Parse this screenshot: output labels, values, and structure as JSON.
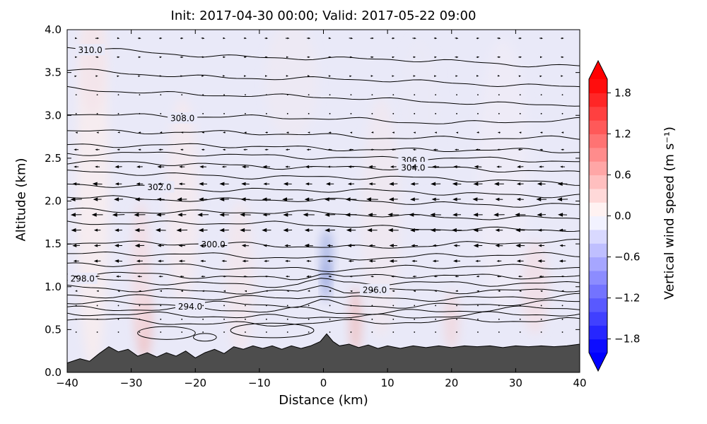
{
  "chart_data": {
    "type": "heatmap",
    "title": "Init: 2017-04-30 00:00; Valid: 2017-05-22 09:00",
    "xlabel": "Distance (km)",
    "ylabel": "Altitude (km)",
    "xlim": [
      -40,
      40
    ],
    "ylim": [
      0,
      4
    ],
    "xticks": {
      "values": [
        -40,
        -30,
        -20,
        -10,
        0,
        10,
        20,
        30,
        40
      ],
      "labels": [
        "−40",
        "−30",
        "−20",
        "−10",
        "0",
        "10",
        "20",
        "30",
        "40"
      ]
    },
    "yticks": {
      "values": [
        0,
        0.5,
        1,
        1.5,
        2,
        2.5,
        3,
        3.5,
        4
      ],
      "labels": [
        "0.0",
        "0.5",
        "1.0",
        "1.5",
        "2.0",
        "2.5",
        "3.0",
        "3.5",
        "4.0"
      ]
    },
    "colorbar": {
      "label": "Vertical wind speed (m s⁻¹)",
      "vmin": -2.0,
      "vmax": 2.0,
      "step": 0.2,
      "cmap": "bwr",
      "extend": "both",
      "ticks": {
        "values": [
          1.8,
          1.2,
          0.6,
          0.0,
          -0.6,
          -1.2,
          -1.8
        ],
        "labels": [
          "1.8",
          "1.2",
          "0.6",
          "0.0",
          "−0.6",
          "−1.2",
          "−1.8"
        ]
      }
    },
    "contour_color": "#000000",
    "terrain_color": "#4d4d4d",
    "shading": {
      "base": "#e9e9f8",
      "patches": [
        {
          "cx": -36,
          "cy": 2.2,
          "rx": 2.5,
          "ry": 2.2,
          "color": "#f7ecef",
          "op": 0.95
        },
        {
          "cx": -36,
          "cy": 3.6,
          "rx": 2.0,
          "ry": 0.6,
          "color": "#f3e4ea",
          "op": 0.8
        },
        {
          "cx": -28,
          "cy": 0.55,
          "rx": 1.2,
          "ry": 0.4,
          "color": "#efc4c6",
          "op": 0.9
        },
        {
          "cx": -28.5,
          "cy": 1.2,
          "rx": 1.5,
          "ry": 0.8,
          "color": "#f4dce2",
          "op": 0.8
        },
        {
          "cx": -22,
          "cy": 2.0,
          "rx": 2.5,
          "ry": 1.2,
          "color": "#f6eaee",
          "op": 0.8
        },
        {
          "cx": -13,
          "cy": 1.1,
          "rx": 2.2,
          "ry": 0.9,
          "color": "#f5e6ea",
          "op": 0.7
        },
        {
          "cx": 0.5,
          "cy": 1.35,
          "rx": 0.9,
          "ry": 0.33,
          "color": "#aab6e6",
          "op": 0.95
        },
        {
          "cx": 0.4,
          "cy": 1.05,
          "rx": 0.55,
          "ry": 0.22,
          "color": "#93a1dd",
          "op": 0.95
        },
        {
          "cx": 5,
          "cy": 0.6,
          "rx": 0.9,
          "ry": 0.4,
          "color": "#eebfc1",
          "op": 0.85
        },
        {
          "cx": 9,
          "cy": 1.8,
          "rx": 3.0,
          "ry": 1.4,
          "color": "#f4e8ed",
          "op": 0.6
        },
        {
          "cx": 20,
          "cy": 0.6,
          "rx": 1.2,
          "ry": 0.35,
          "color": "#f2d4d8",
          "op": 0.7
        },
        {
          "cx": 33,
          "cy": 1.0,
          "rx": 2.2,
          "ry": 0.55,
          "color": "#f3dde2",
          "op": 0.7
        },
        {
          "cx": 28,
          "cy": 2.3,
          "rx": 4.0,
          "ry": 1.6,
          "color": "#f1ecf6",
          "op": 0.6
        },
        {
          "cx": -5,
          "cy": 3.4,
          "rx": 4.0,
          "ry": 0.7,
          "color": "#f2e9f0",
          "op": 0.5
        },
        {
          "cx": 15,
          "cy": 3.1,
          "rx": 3.0,
          "ry": 0.8,
          "color": "#ece9f6",
          "op": 0.5
        }
      ]
    },
    "contours": [
      {
        "pts": [
          [
            -40,
            3.79
          ],
          [
            -30,
            3.74
          ],
          [
            -18,
            3.7
          ],
          [
            -6,
            3.68
          ],
          [
            6,
            3.65
          ],
          [
            18,
            3.63
          ],
          [
            30,
            3.6
          ],
          [
            40,
            3.58
          ]
        ],
        "wig": 0.016,
        "label": {
          "text": "310.0",
          "x": -36
        }
      },
      {
        "pts": [
          [
            -40,
            3.52
          ],
          [
            -20,
            3.46
          ],
          [
            0,
            3.42
          ],
          [
            20,
            3.38
          ],
          [
            40,
            3.34
          ]
        ],
        "wig": 0.016
      },
      {
        "pts": [
          [
            -40,
            3.31
          ],
          [
            -15,
            3.24
          ],
          [
            10,
            3.18
          ],
          [
            40,
            3.12
          ]
        ],
        "wig": 0.016
      },
      {
        "pts": [
          [
            -40,
            3.03
          ],
          [
            -25,
            3.0
          ],
          [
            -10,
            2.97
          ],
          [
            5,
            2.95
          ],
          [
            20,
            2.92
          ],
          [
            40,
            2.94
          ]
        ],
        "wig": 0.017,
        "label": {
          "text": "308.0",
          "x": -22
        }
      },
      {
        "pts": [
          [
            -40,
            2.83
          ],
          [
            -15,
            2.79
          ],
          [
            10,
            2.75
          ],
          [
            40,
            2.72
          ]
        ],
        "wig": 0.017
      },
      {
        "pts": [
          [
            -40,
            2.66
          ],
          [
            0,
            2.62
          ],
          [
            40,
            2.57
          ]
        ],
        "wig": 0.017
      },
      {
        "pts": [
          [
            -40,
            2.56
          ],
          [
            0,
            2.52
          ],
          [
            40,
            2.46
          ]
        ],
        "wig": 0.017,
        "label": {
          "text": "306.0",
          "x": 14
        }
      },
      {
        "pts": [
          [
            -40,
            2.45
          ],
          [
            0,
            2.4
          ],
          [
            40,
            2.34
          ]
        ],
        "wig": 0.018,
        "label": {
          "text": "304.0",
          "x": 14
        }
      },
      {
        "pts": [
          [
            -40,
            2.33
          ],
          [
            0,
            2.28
          ],
          [
            40,
            2.22
          ]
        ],
        "wig": 0.018
      },
      {
        "pts": [
          [
            -40,
            2.19
          ],
          [
            -27,
            2.16
          ],
          [
            0,
            2.12
          ],
          [
            20,
            2.09
          ],
          [
            40,
            2.07
          ]
        ],
        "wig": 0.018,
        "label": {
          "text": "302.0",
          "x": -26
        }
      },
      {
        "pts": [
          [
            -40,
            2.05
          ],
          [
            0,
            2.0
          ],
          [
            40,
            1.95
          ]
        ],
        "wig": 0.018
      },
      {
        "pts": [
          [
            -40,
            1.9
          ],
          [
            0,
            1.85
          ],
          [
            40,
            1.79
          ]
        ],
        "wig": 0.018
      },
      {
        "pts": [
          [
            -40,
            1.76
          ],
          [
            0,
            1.72
          ],
          [
            20,
            1.68
          ],
          [
            40,
            1.65
          ]
        ],
        "wig": 0.018
      },
      {
        "pts": [
          [
            -40,
            1.53
          ],
          [
            -30,
            1.51
          ],
          [
            -10,
            1.48
          ],
          [
            5,
            1.47
          ],
          [
            25,
            1.5
          ],
          [
            40,
            1.52
          ]
        ],
        "wig": 0.019,
        "label": {
          "text": "300.0",
          "x": -17
        }
      },
      {
        "pts": [
          [
            -40,
            1.39
          ],
          [
            0,
            1.34
          ],
          [
            25,
            1.36
          ],
          [
            40,
            1.37
          ]
        ],
        "wig": 0.019
      },
      {
        "pts": [
          [
            -40,
            1.26
          ],
          [
            0,
            1.21
          ],
          [
            40,
            1.24
          ]
        ],
        "wig": 0.019
      },
      {
        "pts": [
          [
            -40,
            1.15
          ],
          [
            -5,
            1.11
          ],
          [
            0,
            1.16
          ],
          [
            3,
            1.11
          ],
          [
            40,
            1.13
          ]
        ],
        "wig": 0.02
      },
      {
        "pts": [
          [
            -40,
            1.07
          ],
          [
            -20,
            1.05
          ],
          [
            -4,
            1.02
          ],
          [
            0,
            1.09
          ],
          [
            3,
            1.03
          ],
          [
            20,
            1.04
          ],
          [
            40,
            1.05
          ]
        ],
        "wig": 0.02,
        "label": {
          "text": "298.0",
          "x": -37
        }
      },
      {
        "pts": [
          [
            -40,
            0.99
          ],
          [
            -20,
            0.96
          ],
          [
            -4,
            0.93
          ],
          [
            0,
            1.0
          ],
          [
            3,
            0.94
          ],
          [
            8,
            0.95
          ],
          [
            25,
            0.96
          ],
          [
            40,
            0.97
          ]
        ],
        "wig": 0.02,
        "label": {
          "text": "296.0",
          "x": 8
        }
      },
      {
        "pts": [
          [
            -40,
            0.91
          ],
          [
            -20,
            0.88
          ],
          [
            -4,
            0.85
          ],
          [
            0,
            0.91
          ],
          [
            3,
            0.86
          ],
          [
            40,
            0.89
          ]
        ],
        "wig": 0.021
      },
      {
        "pts": [
          [
            -40,
            0.83
          ],
          [
            -20,
            0.8
          ],
          [
            -4,
            0.77
          ],
          [
            0,
            0.83
          ],
          [
            3,
            0.78
          ],
          [
            40,
            0.81
          ]
        ],
        "wig": 0.021
      },
      {
        "pts": [
          [
            -40,
            0.76
          ],
          [
            -22,
            0.73
          ],
          [
            -10,
            0.71
          ],
          [
            -2,
            0.74
          ],
          [
            2,
            0.71
          ],
          [
            20,
            0.72
          ],
          [
            40,
            0.74
          ]
        ],
        "wig": 0.022,
        "label": {
          "text": "294.0",
          "x": -20.5
        }
      },
      {
        "pts": [
          [
            -40,
            0.7
          ],
          [
            -25,
            0.66
          ],
          [
            -12,
            0.64
          ],
          [
            0,
            0.67
          ],
          [
            15,
            0.65
          ],
          [
            40,
            0.68
          ]
        ],
        "wig": 0.022
      },
      {
        "pts": [
          [
            -40,
            0.63
          ],
          [
            -30,
            0.59
          ],
          [
            -20,
            0.56
          ],
          [
            -10,
            0.57
          ],
          [
            0,
            0.6
          ],
          [
            15,
            0.58
          ],
          [
            30,
            0.6
          ],
          [
            40,
            0.62
          ]
        ],
        "wig": 0.022
      }
    ],
    "contour_loops": [
      {
        "cx": -24.5,
        "cy": 0.46,
        "rx": 4.5,
        "ry": 0.075
      },
      {
        "cx": -18.5,
        "cy": 0.41,
        "rx": 1.8,
        "ry": 0.045
      },
      {
        "cx": -8,
        "cy": 0.49,
        "rx": 6.5,
        "ry": 0.085
      }
    ],
    "terrain": [
      [
        -40,
        0.11
      ],
      [
        -38,
        0.16
      ],
      [
        -36.5,
        0.13
      ],
      [
        -35,
        0.22
      ],
      [
        -33.5,
        0.3
      ],
      [
        -32,
        0.24
      ],
      [
        -30.5,
        0.27
      ],
      [
        -29,
        0.19
      ],
      [
        -27.5,
        0.23
      ],
      [
        -26,
        0.18
      ],
      [
        -24.5,
        0.23
      ],
      [
        -23,
        0.19
      ],
      [
        -21.5,
        0.25
      ],
      [
        -20,
        0.17
      ],
      [
        -18.5,
        0.23
      ],
      [
        -17,
        0.27
      ],
      [
        -15.5,
        0.22
      ],
      [
        -14,
        0.3
      ],
      [
        -12.5,
        0.27
      ],
      [
        -11,
        0.31
      ],
      [
        -9.5,
        0.28
      ],
      [
        -8,
        0.31
      ],
      [
        -6.5,
        0.27
      ],
      [
        -5,
        0.31
      ],
      [
        -3.5,
        0.28
      ],
      [
        -2,
        0.31
      ],
      [
        -0.5,
        0.36
      ],
      [
        0.5,
        0.45
      ],
      [
        1.5,
        0.36
      ],
      [
        2.5,
        0.31
      ],
      [
        4,
        0.33
      ],
      [
        5.5,
        0.29
      ],
      [
        7,
        0.32
      ],
      [
        8.5,
        0.28
      ],
      [
        10,
        0.31
      ],
      [
        12,
        0.28
      ],
      [
        14,
        0.31
      ],
      [
        16,
        0.29
      ],
      [
        18,
        0.31
      ],
      [
        20,
        0.29
      ],
      [
        22,
        0.31
      ],
      [
        24,
        0.3
      ],
      [
        26,
        0.31
      ],
      [
        28,
        0.29
      ],
      [
        30,
        0.31
      ],
      [
        32,
        0.3
      ],
      [
        34,
        0.31
      ],
      [
        36,
        0.3
      ],
      [
        38,
        0.31
      ],
      [
        40,
        0.33
      ]
    ],
    "quiver": {
      "x0": -38.6,
      "dx": 3.3,
      "ncols": 24,
      "rows": [
        {
          "alt": 3.9,
          "u": 0.5
        },
        {
          "alt": 3.68,
          "u": 0.45
        },
        {
          "alt": 3.46,
          "u": 0.3
        },
        {
          "alt": 3.24,
          "u": 0.15
        },
        {
          "alt": 3.02,
          "u": -0.12
        },
        {
          "alt": 2.8,
          "u": -0.35
        },
        {
          "alt": 2.6,
          "u": -0.6
        },
        {
          "alt": 2.4,
          "u": -0.95
        },
        {
          "alt": 2.2,
          "u": -1.25
        },
        {
          "alt": 2.02,
          "u": -1.5
        },
        {
          "alt": 1.84,
          "u": -1.55
        },
        {
          "alt": 1.66,
          "u": -1.4
        },
        {
          "alt": 1.48,
          "u": -1.2
        },
        {
          "alt": 1.3,
          "u": -1.0
        },
        {
          "alt": 1.12,
          "u": -0.65
        },
        {
          "alt": 0.95,
          "u": -0.35
        },
        {
          "alt": 0.78,
          "u": -0.15
        },
        {
          "alt": 0.62,
          "u": -0.08
        },
        {
          "alt": 0.47,
          "u": -0.06
        }
      ]
    }
  }
}
